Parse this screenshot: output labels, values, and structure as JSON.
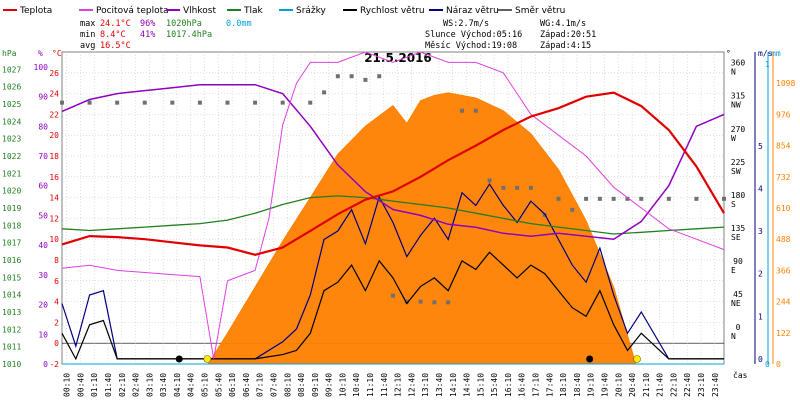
{
  "legend": [
    {
      "label": "Teplota",
      "color": "#e00000"
    },
    {
      "label": "Pocitová teplota",
      "color": "#e040e0"
    },
    {
      "label": "Vlhkost",
      "color": "#9000c0"
    },
    {
      "label": "Tlak",
      "color": "#208020"
    },
    {
      "label": "Srážky",
      "color": "#00a0e0"
    },
    {
      "label": "Rychlost větru",
      "color": "#000000"
    },
    {
      "label": "Náraz větru",
      "color": "#000080"
    },
    {
      "label": "Směr větru",
      "color": "#606060"
    }
  ],
  "stats": {
    "max_label": "max",
    "max_temp": "24.1°C",
    "max_hum": "96%",
    "max_press": "1020hPa",
    "max_rain": "0.0mm",
    "min_label": "min",
    "min_temp": "8.4°C",
    "min_hum": "41%",
    "min_press": "1017.4hPa",
    "avg_label": "avg",
    "avg_temp": "16.5°C",
    "ws": "WS:2.7m/s",
    "wg": "WG:4.1m/s",
    "sun": "Slunce Východ:05:16",
    "sun_set": "Západ:20:51",
    "moon": "Měsíc Východ:19:08",
    "moon_set": "Západ:4:15"
  },
  "colors": {
    "temp": "#e00000",
    "feels": "#e040e0",
    "hum": "#9000c0",
    "press": "#208020",
    "rain": "#00a0e0",
    "wind": "#000000",
    "gust": "#000080",
    "dir": "#707070",
    "sun": "#ff8000",
    "sun_outline": "#ff8000",
    "grid": "#c0c0c0"
  },
  "chart_data": {
    "type": "line",
    "title": "21.5.2016",
    "xlabel": "čas",
    "x_ticks": [
      "00:10",
      "00:40",
      "01:10",
      "01:40",
      "02:10",
      "02:40",
      "03:10",
      "03:40",
      "04:10",
      "04:40",
      "05:10",
      "05:40",
      "06:10",
      "06:40",
      "07:10",
      "07:40",
      "08:10",
      "08:40",
      "09:10",
      "09:40",
      "10:10",
      "10:40",
      "11:10",
      "11:40",
      "12:10",
      "12:40",
      "13:10",
      "13:40",
      "14:10",
      "14:40",
      "15:10",
      "15:40",
      "16:10",
      "16:40",
      "17:10",
      "17:40",
      "18:10",
      "18:40",
      "19:10",
      "19:40",
      "20:10",
      "20:40",
      "21:10",
      "21:40",
      "22:10",
      "22:40",
      "23:10",
      "23:40"
    ],
    "axes": {
      "hpa": {
        "label": "hPa",
        "color": "#208020",
        "range": [
          1010,
          1028
        ],
        "ticks": [
          "1010",
          "1011",
          "1012",
          "1013",
          "1014",
          "1015",
          "1016",
          "1017",
          "1018",
          "1019",
          "1020",
          "1021",
          "1022",
          "1023",
          "1024",
          "1025",
          "1026",
          "1027"
        ]
      },
      "pct": {
        "label": "%",
        "color": "#9000c0",
        "range": [
          0,
          105
        ],
        "ticks": [
          "0",
          "10",
          "20",
          "30",
          "40",
          "50",
          "60",
          "70",
          "80",
          "90",
          "100"
        ]
      },
      "celsius": {
        "label": "°C",
        "color": "#e00000",
        "range": [
          -2,
          28
        ],
        "ticks": [
          "-2",
          "0",
          "2",
          "4",
          "6",
          "8",
          "10",
          "12",
          "14",
          "16",
          "18",
          "20",
          "22",
          "24",
          "26"
        ]
      },
      "deg": {
        "label": "°",
        "color": "#000000",
        "ticks": [
          {
            "v": 0,
            "deg": "0",
            "dir": "N"
          },
          {
            "v": 45,
            "deg": "45",
            "dir": "NE"
          },
          {
            "v": 90,
            "deg": "90",
            "dir": "E"
          },
          {
            "v": 135,
            "deg": "135",
            "dir": "SE"
          },
          {
            "v": 180,
            "deg": "180",
            "dir": "S"
          },
          {
            "v": 225,
            "deg": "225",
            "dir": "SW"
          },
          {
            "v": 270,
            "deg": "270",
            "dir": "W"
          },
          {
            "v": 315,
            "deg": "315",
            "dir": "NW"
          },
          {
            "v": 360,
            "deg": "360",
            "dir": "N"
          }
        ]
      },
      "ms": {
        "label": "m/s",
        "color": "#000080",
        "range": [
          0,
          5
        ],
        "ticks": [
          "0",
          "1",
          "2",
          "3",
          "4",
          "5"
        ]
      },
      "mm": {
        "label": "mm",
        "color": "#00a0e0",
        "range": [
          0,
          1
        ],
        "ticks": [
          "0",
          "1"
        ]
      },
      "wm2": {
        "label": "W/m²",
        "color": "#ff8000",
        "range": [
          0,
          1220
        ],
        "ticks": [
          "0",
          "122",
          "244",
          "366",
          "488",
          "610",
          "732",
          "854",
          "976",
          "1098"
        ]
      }
    },
    "series": [
      {
        "name": "Teplota",
        "unit": "°C",
        "x": [
          0,
          1,
          2,
          3,
          4,
          5,
          6,
          7,
          8,
          9,
          10,
          11,
          12,
          13,
          14,
          15,
          16,
          17,
          18,
          19,
          20,
          21,
          22,
          23,
          24
        ],
        "values": [
          9.5,
          10.3,
          10.2,
          10.0,
          9.7,
          9.4,
          9.2,
          8.5,
          9.2,
          10.8,
          12.4,
          13.8,
          14.6,
          16.0,
          17.6,
          19.0,
          20.5,
          21.8,
          22.6,
          23.7,
          24.1,
          22.8,
          20.5,
          17.0,
          12.5
        ]
      },
      {
        "name": "Pocitová teplota",
        "unit": "°C",
        "x": [
          0,
          1,
          2,
          3,
          4,
          5,
          5.5,
          6,
          7,
          7.5,
          8,
          8.5,
          9,
          10,
          11,
          12,
          13,
          14,
          15,
          16,
          17,
          18,
          19,
          20,
          21,
          22,
          23,
          24
        ],
        "values": [
          7.2,
          7.5,
          7.0,
          6.8,
          6.6,
          6.4,
          -1.5,
          6.0,
          7.0,
          12,
          21,
          25,
          27,
          27,
          28,
          27,
          28,
          27,
          27,
          26,
          22,
          20,
          18,
          15,
          13,
          11,
          10,
          9
        ]
      },
      {
        "name": "Vlhkost",
        "unit": "%",
        "x": [
          0,
          1,
          2,
          3,
          4,
          5,
          6,
          7,
          8,
          9,
          10,
          11,
          12,
          13,
          14,
          15,
          16,
          17,
          18,
          19,
          20,
          21,
          22,
          23,
          24
        ],
        "values": [
          85,
          89,
          91,
          92,
          93,
          94,
          94,
          94,
          91,
          80,
          67,
          58,
          52,
          50,
          47,
          46,
          44,
          43,
          44,
          43,
          42,
          48,
          60,
          80,
          84
        ]
      },
      {
        "name": "Tlak",
        "unit": "hPa",
        "x": [
          0,
          1,
          2,
          3,
          4,
          5,
          6,
          7,
          8,
          9,
          10,
          11,
          12,
          13,
          14,
          15,
          16,
          17,
          18,
          19,
          20,
          21,
          22,
          23,
          24
        ],
        "values": [
          1017.8,
          1017.7,
          1017.8,
          1017.9,
          1018.0,
          1018.1,
          1018.3,
          1018.7,
          1019.2,
          1019.6,
          1019.7,
          1019.6,
          1019.4,
          1019.2,
          1019.0,
          1018.7,
          1018.4,
          1018.1,
          1017.9,
          1017.7,
          1017.5,
          1017.6,
          1017.7,
          1017.8,
          1017.9
        ]
      },
      {
        "name": "Srážky",
        "unit": "mm",
        "x": [
          0,
          24
        ],
        "values": [
          0,
          0
        ]
      },
      {
        "name": "Rychlost větru",
        "unit": "m/s",
        "x": [
          0,
          0.5,
          1,
          1.5,
          2,
          3,
          4,
          5,
          6,
          7,
          8,
          8.5,
          9,
          9.5,
          10,
          10.5,
          11,
          11.5,
          12,
          12.5,
          13,
          13.5,
          14,
          14.5,
          15,
          15.5,
          16,
          16.5,
          17,
          17.5,
          18,
          18.5,
          19,
          19.5,
          20,
          20.5,
          21,
          22,
          23,
          24
        ],
        "values": [
          0.6,
          0.0,
          0.8,
          0.9,
          0.0,
          0.0,
          0.0,
          0.0,
          0.0,
          0.0,
          0.1,
          0.2,
          0.6,
          1.6,
          1.8,
          2.2,
          1.6,
          2.3,
          1.9,
          1.3,
          1.7,
          1.9,
          1.6,
          2.3,
          2.1,
          2.5,
          2.2,
          1.9,
          2.2,
          2.0,
          1.6,
          1.2,
          1.0,
          1.6,
          0.8,
          0.2,
          0.6,
          0.0,
          0.0,
          0.0
        ]
      },
      {
        "name": "Náraz větru",
        "unit": "m/s",
        "x": [
          0,
          0.5,
          1,
          1.5,
          2,
          3,
          4,
          5,
          6,
          7,
          8,
          8.5,
          9,
          9.5,
          10,
          10.5,
          11,
          11.5,
          12,
          12.5,
          13,
          13.5,
          14,
          14.5,
          15,
          15.5,
          16,
          16.5,
          17,
          17.5,
          18,
          18.5,
          19,
          19.5,
          20,
          20.5,
          21,
          22,
          23,
          24
        ],
        "values": [
          1.3,
          0.3,
          1.5,
          1.6,
          0.0,
          0.0,
          0.0,
          0.0,
          0.0,
          0.0,
          0.4,
          0.7,
          1.5,
          2.8,
          3.0,
          3.5,
          2.7,
          3.8,
          3.2,
          2.4,
          2.9,
          3.3,
          2.8,
          3.9,
          3.6,
          4.1,
          3.6,
          3.2,
          3.7,
          3.4,
          2.8,
          2.2,
          1.8,
          2.6,
          1.5,
          0.6,
          1.1,
          0.0,
          0.0,
          0.0
        ]
      },
      {
        "name": "Směr větru",
        "unit": "°",
        "x": [
          0,
          1,
          2,
          3,
          4,
          5,
          6,
          7,
          8,
          9,
          9.5,
          10,
          10.5,
          11,
          11.5,
          12,
          12.5,
          13,
          13.5,
          14,
          14.5,
          15,
          15.5,
          16,
          16.5,
          17,
          17.5,
          18,
          18.5,
          19,
          19.5,
          20,
          20.5,
          21,
          22,
          23,
          24
        ],
        "values": [
          311,
          311,
          311,
          311,
          311,
          311,
          311,
          311,
          311,
          311,
          325,
          347,
          347,
          342,
          347,
          48,
          40,
          40,
          39,
          39,
          300,
          300,
          205,
          195,
          195,
          195,
          158,
          180,
          165,
          180,
          180,
          180,
          180,
          180,
          180,
          180,
          180
        ]
      },
      {
        "name": "Sluneční záření",
        "unit": "W/m²",
        "x": [
          5.3,
          6,
          7,
          8,
          9,
          10,
          11,
          12,
          12.5,
          13,
          13.5,
          14,
          15,
          16,
          17,
          18,
          19,
          20,
          20.8
        ],
        "values": [
          0,
          120,
          300,
          480,
          650,
          820,
          930,
          1010,
          940,
          1030,
          1050,
          1060,
          1040,
          990,
          900,
          760,
          560,
          300,
          0
        ]
      }
    ]
  }
}
